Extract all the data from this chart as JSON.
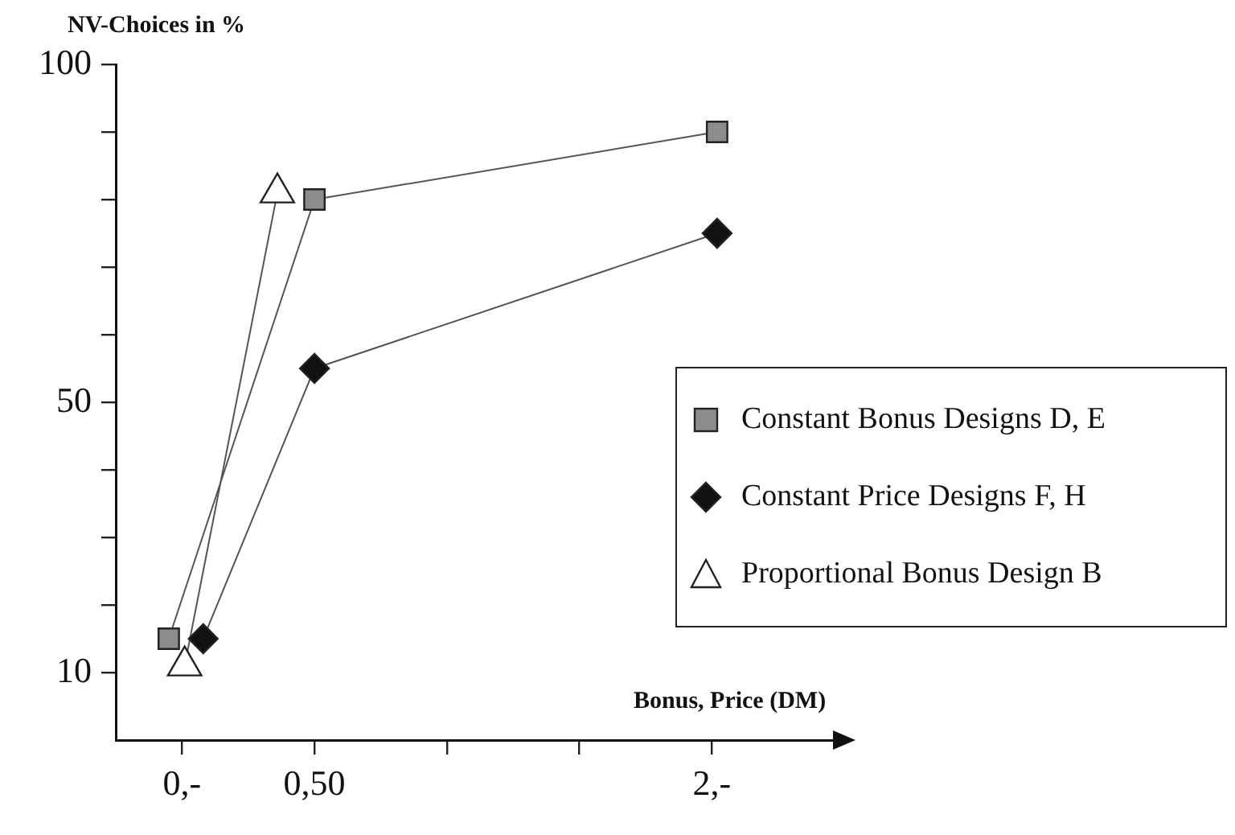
{
  "chart_data": {
    "type": "line",
    "ylabel": "NV-Choices in %",
    "xlabel": "Bonus, Price (DM)",
    "xlim": [
      -0.25,
      2.5
    ],
    "ylim": [
      0,
      100
    ],
    "xticks": [
      {
        "value": 0,
        "label": "0,-"
      },
      {
        "value": 0.5,
        "label": "0,50"
      },
      {
        "value": 1,
        "label": null
      },
      {
        "value": 1.5,
        "label": null
      },
      {
        "value": 2,
        "label": "2,-"
      }
    ],
    "yticks": [
      {
        "value": 10,
        "label": "10"
      },
      {
        "value": 20,
        "label": null
      },
      {
        "value": 30,
        "label": null
      },
      {
        "value": 40,
        "label": null
      },
      {
        "value": 50,
        "label": "50"
      },
      {
        "value": 60,
        "label": null
      },
      {
        "value": 70,
        "label": null
      },
      {
        "value": 80,
        "label": null
      },
      {
        "value": 90,
        "label": null
      },
      {
        "value": 100,
        "label": "100"
      }
    ],
    "grid": false,
    "legend": "right",
    "series": [
      {
        "name": "Constant Bonus Designs D, E",
        "color": "#8c8c8c",
        "marker": "square",
        "x": [
          -0.05,
          0.5,
          2.02
        ],
        "values": [
          15,
          80,
          90
        ]
      },
      {
        "name": "Constant Price Designs F, H",
        "color": "#111111",
        "marker": "diamond",
        "x": [
          0.08,
          0.5,
          2.02
        ],
        "values": [
          15,
          55,
          75
        ]
      },
      {
        "name": "Proportional Bonus Design B",
        "color": "#ffffff",
        "marker": "triangle",
        "x": [
          0.01,
          0.36
        ],
        "values": [
          11,
          81
        ]
      }
    ]
  }
}
